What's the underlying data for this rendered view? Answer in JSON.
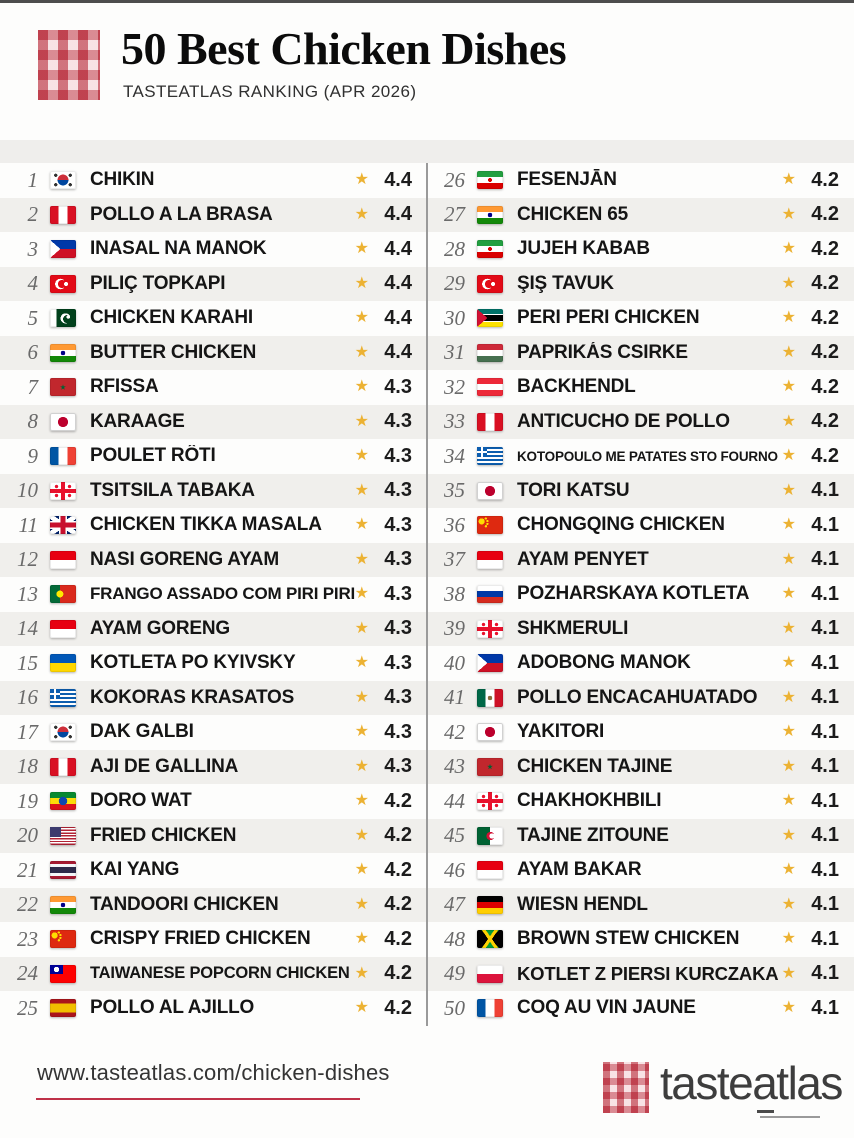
{
  "header": {
    "title": "50 Best Chicken Dishes",
    "subtitle": "TASTEATLAS RANKING (APR 2026)"
  },
  "icons": {
    "star": "★",
    "logo": "red-white-gingham-checkered-pattern"
  },
  "colors": {
    "accent_red": "#b51f2b",
    "star_gold": "#ecb233",
    "row_alt_gray": "#f0efec",
    "footer_underline_red": "#bf3148"
  },
  "list": {
    "items": [
      {
        "rank": "1",
        "flag": "kr",
        "country": "South Korea",
        "name": "CHIKIN",
        "rating": "4.4"
      },
      {
        "rank": "2",
        "flag": "pe",
        "country": "Peru",
        "name": "POLLO A LA BRASA",
        "rating": "4.4"
      },
      {
        "rank": "3",
        "flag": "ph",
        "country": "Philippines",
        "name": "INASAL NA MANOK",
        "rating": "4.4"
      },
      {
        "rank": "4",
        "flag": "tr",
        "country": "Turkey",
        "name": "PILIÇ TOPKAPI",
        "rating": "4.4"
      },
      {
        "rank": "5",
        "flag": "pk",
        "country": "Pakistan",
        "name": "CHICKEN KARAHI",
        "rating": "4.4"
      },
      {
        "rank": "6",
        "flag": "in",
        "country": "India",
        "name": "BUTTER CHICKEN",
        "rating": "4.4"
      },
      {
        "rank": "7",
        "flag": "ma",
        "country": "Morocco",
        "name": "RFISSA",
        "rating": "4.3"
      },
      {
        "rank": "8",
        "flag": "jp",
        "country": "Japan",
        "name": "KARAAGE",
        "rating": "4.3"
      },
      {
        "rank": "9",
        "flag": "fr",
        "country": "France",
        "name": "POULET RÔTI",
        "rating": "4.3"
      },
      {
        "rank": "10",
        "flag": "ge",
        "country": "Georgia",
        "name": "TSITSILA TABAKA",
        "rating": "4.3"
      },
      {
        "rank": "11",
        "flag": "gb",
        "country": "United Kingdom",
        "name": "CHICKEN TIKKA MASALA",
        "rating": "4.3"
      },
      {
        "rank": "12",
        "flag": "id",
        "country": "Indonesia",
        "name": "NASI GORENG AYAM",
        "rating": "4.3"
      },
      {
        "rank": "13",
        "flag": "pt",
        "country": "Portugal",
        "name": "FRANGO ASSADO COM PIRI PIRI",
        "rating": "4.3"
      },
      {
        "rank": "14",
        "flag": "id",
        "country": "Indonesia",
        "name": "AYAM GORENG",
        "rating": "4.3"
      },
      {
        "rank": "15",
        "flag": "ua",
        "country": "Ukraine",
        "name": "KOTLETA PO KYIVSKY",
        "rating": "4.3"
      },
      {
        "rank": "16",
        "flag": "gr",
        "country": "Greece",
        "name": "KOKORAS KRASATOS",
        "rating": "4.3"
      },
      {
        "rank": "17",
        "flag": "kr",
        "country": "South Korea",
        "name": "DAK GALBI",
        "rating": "4.3"
      },
      {
        "rank": "18",
        "flag": "pe",
        "country": "Peru",
        "name": "AJI DE GALLINA",
        "rating": "4.3"
      },
      {
        "rank": "19",
        "flag": "et",
        "country": "Ethiopia",
        "name": "DORO WAT",
        "rating": "4.2"
      },
      {
        "rank": "20",
        "flag": "us",
        "country": "United States",
        "name": "FRIED CHICKEN",
        "rating": "4.2"
      },
      {
        "rank": "21",
        "flag": "th",
        "country": "Thailand",
        "name": "KAI YANG",
        "rating": "4.2"
      },
      {
        "rank": "22",
        "flag": "in",
        "country": "India",
        "name": "TANDOORI CHICKEN",
        "rating": "4.2"
      },
      {
        "rank": "23",
        "flag": "cn",
        "country": "China",
        "name": "CRISPY FRIED CHICKEN",
        "rating": "4.2"
      },
      {
        "rank": "24",
        "flag": "tw",
        "country": "Taiwan",
        "name": "TAIWANESE POPCORN CHICKEN",
        "rating": "4.2"
      },
      {
        "rank": "25",
        "flag": "es",
        "country": "Spain",
        "name": "POLLO AL AJILLO",
        "rating": "4.2"
      },
      {
        "rank": "26",
        "flag": "ir",
        "country": "Iran",
        "name": "FESENJĀN",
        "rating": "4.2"
      },
      {
        "rank": "27",
        "flag": "in",
        "country": "India",
        "name": "CHICKEN 65",
        "rating": "4.2"
      },
      {
        "rank": "28",
        "flag": "ir",
        "country": "Iran",
        "name": "JUJEH KABAB",
        "rating": "4.2"
      },
      {
        "rank": "29",
        "flag": "tr",
        "country": "Turkey",
        "name": "ŞIŞ TAVUK",
        "rating": "4.2"
      },
      {
        "rank": "30",
        "flag": "mz",
        "country": "Mozambique",
        "name": "PERI PERI CHICKEN",
        "rating": "4.2"
      },
      {
        "rank": "31",
        "flag": "hu",
        "country": "Hungary",
        "name": "PAPRIKÁS CSIRKE",
        "rating": "4.2"
      },
      {
        "rank": "32",
        "flag": "at",
        "country": "Austria",
        "name": "BACKHENDL",
        "rating": "4.2"
      },
      {
        "rank": "33",
        "flag": "pe",
        "country": "Peru",
        "name": "ANTICUCHO DE POLLO",
        "rating": "4.2"
      },
      {
        "rank": "34",
        "flag": "gr",
        "country": "Greece",
        "name": "KOTOPOULO ME PATATES STO FOURNO",
        "rating": "4.2"
      },
      {
        "rank": "35",
        "flag": "jp",
        "country": "Japan",
        "name": "TORI KATSU",
        "rating": "4.1"
      },
      {
        "rank": "36",
        "flag": "cn",
        "country": "China",
        "name": "CHONGQING CHICKEN",
        "rating": "4.1"
      },
      {
        "rank": "37",
        "flag": "id",
        "country": "Indonesia",
        "name": "AYAM PENYET",
        "rating": "4.1"
      },
      {
        "rank": "38",
        "flag": "ru",
        "country": "Russia",
        "name": "POZHARSKAYA KOTLETA",
        "rating": "4.1"
      },
      {
        "rank": "39",
        "flag": "ge",
        "country": "Georgia",
        "name": "SHKMERULI",
        "rating": "4.1"
      },
      {
        "rank": "40",
        "flag": "ph",
        "country": "Philippines",
        "name": "ADOBONG MANOK",
        "rating": "4.1"
      },
      {
        "rank": "41",
        "flag": "mx",
        "country": "Mexico",
        "name": "POLLO ENCACAHUATADO",
        "rating": "4.1"
      },
      {
        "rank": "42",
        "flag": "jp",
        "country": "Japan",
        "name": "YAKITORI",
        "rating": "4.1"
      },
      {
        "rank": "43",
        "flag": "ma",
        "country": "Morocco",
        "name": "CHICKEN TAJINE",
        "rating": "4.1"
      },
      {
        "rank": "44",
        "flag": "ge",
        "country": "Georgia",
        "name": "CHAKHOKHBILI",
        "rating": "4.1"
      },
      {
        "rank": "45",
        "flag": "dz",
        "country": "Algeria",
        "name": "TAJINE ZITOUNE",
        "rating": "4.1"
      },
      {
        "rank": "46",
        "flag": "id",
        "country": "Indonesia",
        "name": "AYAM BAKAR",
        "rating": "4.1"
      },
      {
        "rank": "47",
        "flag": "de",
        "country": "Germany",
        "name": "WIESN HENDL",
        "rating": "4.1"
      },
      {
        "rank": "48",
        "flag": "jm",
        "country": "Jamaica",
        "name": "BROWN STEW CHICKEN",
        "rating": "4.1"
      },
      {
        "rank": "49",
        "flag": "pl",
        "country": "Poland",
        "name": "KOTLET Z PIERSI KURCZAKA",
        "rating": "4.1"
      },
      {
        "rank": "50",
        "flag": "fr",
        "country": "France",
        "name": "COQ AU VIN JAUNE",
        "rating": "4.1"
      }
    ]
  },
  "footer": {
    "url": "www.tasteatlas.com/chicken-dishes",
    "brand": "tasteatlas"
  }
}
